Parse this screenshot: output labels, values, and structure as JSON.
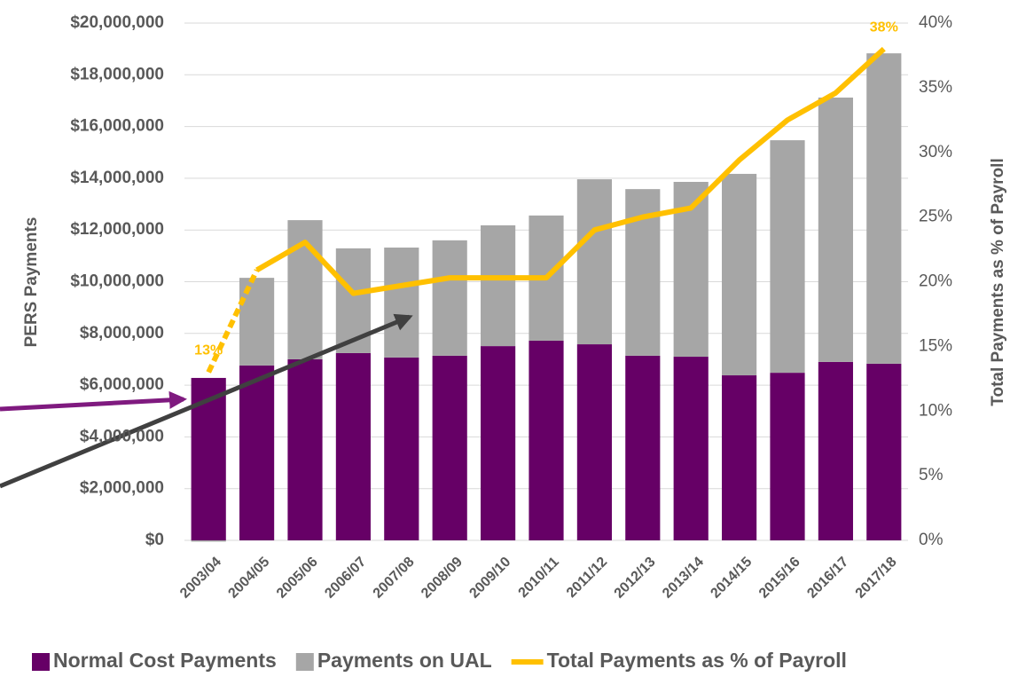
{
  "chart_data": {
    "type": "bar",
    "y_label": "PERS Payments",
    "y2_label": "Total Payments as % of Payroll",
    "categories": [
      "2003/04",
      "2004/05",
      "2005/06",
      "2006/07",
      "2007/08",
      "2008/09",
      "2009/10",
      "2010/11",
      "2011/12",
      "2012/13",
      "2013/14",
      "2014/15",
      "2015/16",
      "2016/17",
      "2017/18"
    ],
    "series": [
      {
        "name": "Normal Cost Payments",
        "color": "#660066",
        "values": [
          6280000,
          6760000,
          7000000,
          7240000,
          7070000,
          7140000,
          7510000,
          7720000,
          7580000,
          7140000,
          7100000,
          6380000,
          6480000,
          6900000,
          6830000
        ]
      },
      {
        "name": "Payments on UAL",
        "color": "#a6a6a6",
        "values": [
          -50000,
          3390000,
          5380000,
          4050000,
          4250000,
          4460000,
          4670000,
          4840000,
          6380000,
          6440000,
          6760000,
          7790000,
          8990000,
          10220000,
          12000000
        ]
      },
      {
        "name": "Total Payments as % of Payroll",
        "color": "#ffc000",
        "type": "line",
        "axis": "y2",
        "values": [
          13,
          20.9,
          23.05,
          19.1,
          19.7,
          20.3,
          20.3,
          20.3,
          24,
          25,
          25.7,
          29.4,
          32.5,
          34.6,
          38
        ],
        "value_labels": [
          "13%",
          null,
          null,
          null,
          null,
          null,
          null,
          null,
          null,
          null,
          null,
          null,
          null,
          null,
          "38%"
        ]
      }
    ],
    "ylim": [
      0,
      20000000
    ],
    "yticks": [
      {
        "value": 0,
        "label": "$0"
      },
      {
        "value": 2000000,
        "label": "$2,000,000"
      },
      {
        "value": 4000000,
        "label": "$4,000,000"
      },
      {
        "value": 6000000,
        "label": "$6,000,000"
      },
      {
        "value": 8000000,
        "label": "$8,000,000"
      },
      {
        "value": 10000000,
        "label": "$10,000,000"
      },
      {
        "value": 12000000,
        "label": "$12,000,000"
      },
      {
        "value": 14000000,
        "label": "$14,000,000"
      },
      {
        "value": 16000000,
        "label": "$16,000,000"
      },
      {
        "value": 18000000,
        "label": "$18,000,000"
      },
      {
        "value": 20000000,
        "label": "$20,000,000"
      }
    ],
    "y2lim": [
      0,
      40
    ],
    "y2ticks": [
      {
        "value": 0,
        "label": "0%"
      },
      {
        "value": 5,
        "label": "5%"
      },
      {
        "value": 10,
        "label": "10%"
      },
      {
        "value": 15,
        "label": "15%"
      },
      {
        "value": 20,
        "label": "20%"
      },
      {
        "value": 25,
        "label": "25%"
      },
      {
        "value": 30,
        "label": "30%"
      },
      {
        "value": 35,
        "label": "35%"
      },
      {
        "value": 40,
        "label": "40%"
      }
    ],
    "grid": true,
    "legend": "bottom"
  }
}
